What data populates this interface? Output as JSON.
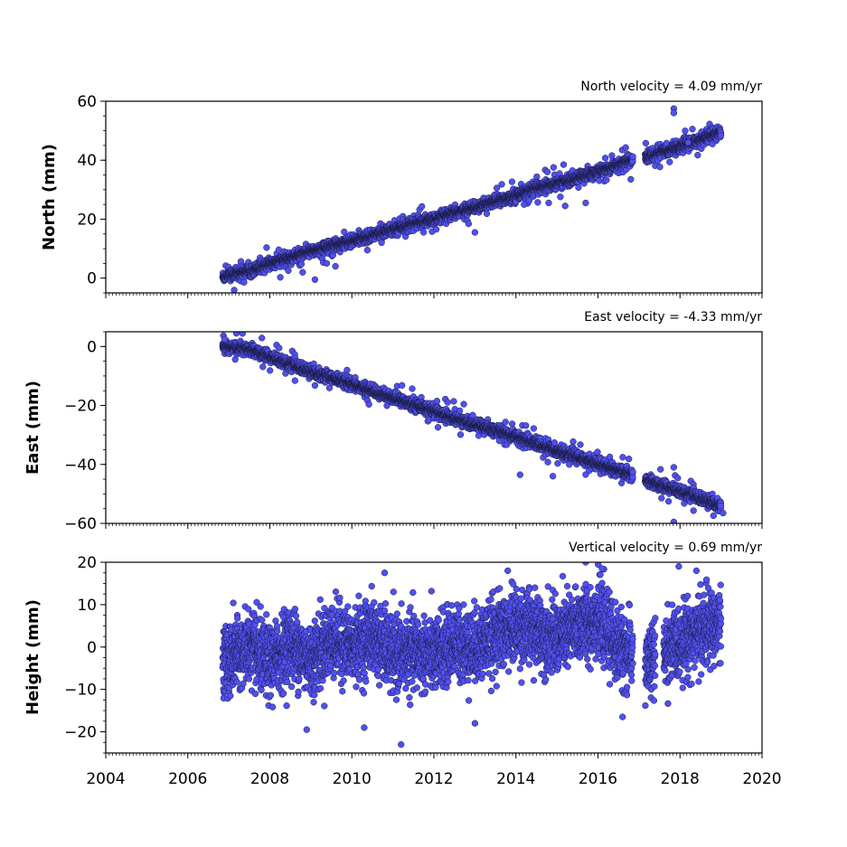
{
  "chart_data": {
    "type": "scatter",
    "x_axis": {
      "xlim": [
        2004,
        2020
      ],
      "ticks": [
        2004,
        2006,
        2008,
        2010,
        2012,
        2014,
        2016,
        2018,
        2020
      ],
      "tick_labels": [
        "2004",
        "2006",
        "2008",
        "2010",
        "2012",
        "2014",
        "2016",
        "2018",
        "2020"
      ]
    },
    "colors": {
      "marker_fill": "#5050f0",
      "marker_edge": "#1a1a40"
    },
    "panels": [
      {
        "id": "north",
        "ylabel": "North (mm)",
        "annotation": "North velocity = 4.09 mm/yr",
        "ylim": [
          -5,
          60
        ],
        "yticks": [
          0,
          20,
          40,
          60
        ],
        "ytick_labels": [
          "0",
          "20",
          "40",
          "60"
        ],
        "data_range": {
          "x_start": 2006.85,
          "x_end": 2019.0,
          "gap": [
            2016.85,
            2017.15
          ]
        },
        "trend": {
          "y_at_start": 0.5,
          "slope_per_yr": 4.09
        },
        "points": [
          [
            2006.9,
            0.5
          ],
          [
            2007.5,
            2.8
          ],
          [
            2008.0,
            4.6
          ],
          [
            2008.5,
            7.0
          ],
          [
            2009.0,
            9.0
          ],
          [
            2009.5,
            11.0
          ],
          [
            2010.0,
            12.5
          ],
          [
            2010.5,
            14.5
          ],
          [
            2011.0,
            16.5
          ],
          [
            2011.5,
            18.5
          ],
          [
            2012.0,
            20.0
          ],
          [
            2012.5,
            22.0
          ],
          [
            2013.0,
            24.0
          ],
          [
            2013.5,
            26.0
          ],
          [
            2014.0,
            28.0
          ],
          [
            2014.5,
            30.5
          ],
          [
            2015.0,
            32.0
          ],
          [
            2015.5,
            34.0
          ],
          [
            2016.0,
            36.0
          ],
          [
            2016.5,
            38.5
          ],
          [
            2016.8,
            40.0
          ],
          [
            2017.2,
            41.0
          ],
          [
            2017.5,
            42.5
          ],
          [
            2018.0,
            44.5
          ],
          [
            2018.5,
            47.0
          ],
          [
            2019.0,
            49.5
          ]
        ],
        "outliers": [
          [
            2008.8,
            2.0
          ],
          [
            2009.1,
            -0.5
          ],
          [
            2009.6,
            4.0
          ],
          [
            2013.0,
            15.5
          ],
          [
            2014.2,
            25.0
          ],
          [
            2014.8,
            25.5
          ],
          [
            2015.2,
            24.5
          ],
          [
            2015.7,
            25.5
          ],
          [
            2016.8,
            33.5
          ],
          [
            2017.85,
            57.5
          ],
          [
            2017.85,
            56.0
          ],
          [
            2018.2,
            46.0
          ]
        ]
      },
      {
        "id": "east",
        "ylabel": "East (mm)",
        "annotation": "East velocity = -4.33 mm/yr",
        "ylim": [
          -60,
          5
        ],
        "yticks": [
          0,
          -20,
          -40,
          -60
        ],
        "ytick_labels": [
          "0",
          "−20",
          "−40",
          "−60"
        ],
        "data_range": {
          "x_start": 2006.85,
          "x_end": 2019.0,
          "gap": [
            2016.85,
            2017.15
          ]
        },
        "trend": {
          "y_at_start": 0.0,
          "slope_per_yr": -4.33
        },
        "points": [
          [
            2006.9,
            0.0
          ],
          [
            2007.5,
            -1.0
          ],
          [
            2008.0,
            -3.5
          ],
          [
            2008.5,
            -6.0
          ],
          [
            2009.0,
            -8.5
          ],
          [
            2009.5,
            -10.5
          ],
          [
            2010.0,
            -13.0
          ],
          [
            2010.5,
            -15.0
          ],
          [
            2011.0,
            -17.5
          ],
          [
            2011.5,
            -19.5
          ],
          [
            2012.0,
            -22.0
          ],
          [
            2012.5,
            -24.5
          ],
          [
            2013.0,
            -26.5
          ],
          [
            2013.5,
            -28.5
          ],
          [
            2014.0,
            -30.5
          ],
          [
            2014.5,
            -33.0
          ],
          [
            2015.0,
            -35.5
          ],
          [
            2015.5,
            -37.5
          ],
          [
            2016.0,
            -40.0
          ],
          [
            2016.5,
            -42.0
          ],
          [
            2016.8,
            -43.5
          ],
          [
            2017.2,
            -45.5
          ],
          [
            2017.5,
            -47.0
          ],
          [
            2018.0,
            -49.0
          ],
          [
            2018.5,
            -51.5
          ],
          [
            2019.0,
            -54.0
          ]
        ],
        "outliers": [
          [
            2006.9,
            2.5
          ],
          [
            2014.1,
            -43.5
          ],
          [
            2014.9,
            -44.0
          ],
          [
            2015.3,
            -40.0
          ],
          [
            2017.85,
            -59.5
          ],
          [
            2017.85,
            -41.0
          ],
          [
            2019.05,
            -56.5
          ]
        ]
      },
      {
        "id": "height",
        "ylabel": "Height (mm)",
        "annotation": "Vertical velocity = 0.69 mm/yr",
        "ylim": [
          -25,
          20
        ],
        "yticks": [
          -20,
          -10,
          0,
          10,
          20
        ],
        "ytick_labels": [
          "−20",
          "−10",
          "0",
          "10",
          "20"
        ],
        "data_range": {
          "x_start": 2006.85,
          "x_end": 2019.0,
          "gap": [
            2016.85,
            2017.15
          ],
          "gap2": [
            2017.4,
            2017.6
          ]
        },
        "trend": {
          "y_at_start": -1.0,
          "slope_per_yr": 0.69
        },
        "points": [
          [
            2007.0,
            -3.0
          ],
          [
            2007.5,
            0.0
          ],
          [
            2008.0,
            -4.0
          ],
          [
            2008.5,
            1.0
          ],
          [
            2009.0,
            -3.0
          ],
          [
            2009.5,
            2.0
          ],
          [
            2010.0,
            0.0
          ],
          [
            2010.5,
            3.0
          ],
          [
            2011.0,
            -2.0
          ],
          [
            2011.5,
            -1.0
          ],
          [
            2012.0,
            -2.0
          ],
          [
            2012.5,
            1.0
          ],
          [
            2013.0,
            0.0
          ],
          [
            2013.5,
            3.0
          ],
          [
            2014.0,
            5.0
          ],
          [
            2014.5,
            4.0
          ],
          [
            2015.0,
            2.0
          ],
          [
            2015.5,
            5.0
          ],
          [
            2016.0,
            7.0
          ],
          [
            2016.5,
            0.0
          ],
          [
            2017.2,
            -4.0
          ],
          [
            2017.8,
            0.0
          ],
          [
            2018.3,
            3.0
          ],
          [
            2018.8,
            5.0
          ]
        ],
        "outliers": [
          [
            2008.9,
            -19.5
          ],
          [
            2010.3,
            -19.0
          ],
          [
            2011.2,
            -23.0
          ],
          [
            2013.0,
            -18.0
          ],
          [
            2015.7,
            20.0
          ],
          [
            2016.1,
            18.5
          ],
          [
            2013.8,
            18.0
          ],
          [
            2010.8,
            17.5
          ],
          [
            2018.4,
            18.0
          ],
          [
            2016.6,
            -16.5
          ]
        ]
      }
    ]
  }
}
